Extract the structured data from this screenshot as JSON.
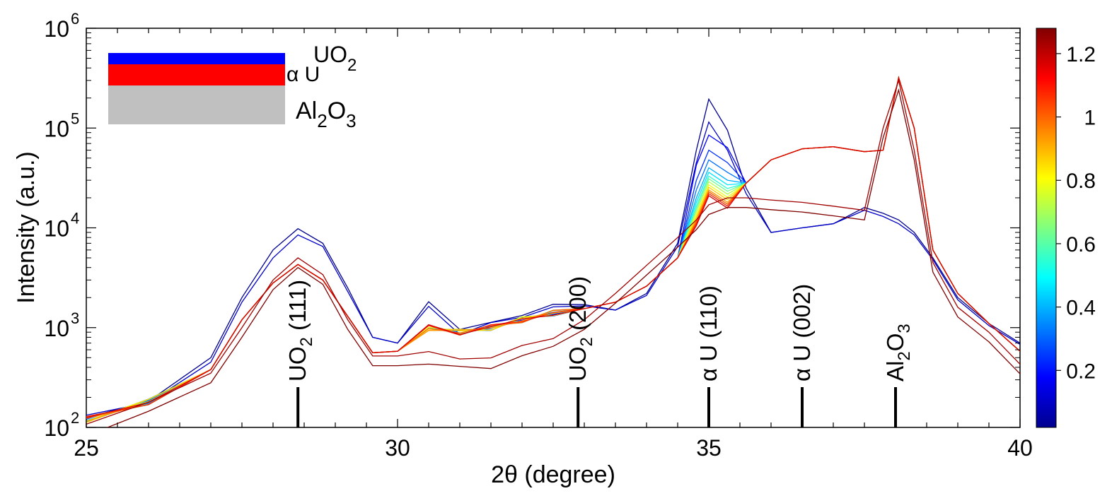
{
  "chart_data": {
    "type": "line",
    "xlabel": "2θ (degree)",
    "ylabel": "Intensity (a.u.)",
    "xlim": [
      25,
      40
    ],
    "ylim": [
      100,
      1000000
    ],
    "yscale": "log",
    "x_ticks": [
      "25",
      "30",
      "35",
      "40"
    ],
    "y_ticks": [
      {
        "base": "10",
        "exp": "2"
      },
      {
        "base": "10",
        "exp": "3"
      },
      {
        "base": "10",
        "exp": "4"
      },
      {
        "base": "10",
        "exp": "5"
      },
      {
        "base": "10",
        "exp": "6"
      }
    ],
    "grid": false,
    "colorbar": {
      "colormap": "jet",
      "range": [
        0.02,
        1.28
      ],
      "ticks": [
        "0.2",
        "0.4",
        "0.6",
        "0.8",
        "1",
        "1.2"
      ]
    },
    "peak_markers": [
      {
        "x": 28.4,
        "label": "UO",
        "sub1": "2",
        "rest": " (111)"
      },
      {
        "x": 32.9,
        "label": "UO",
        "sub1": "2",
        "rest": " (200)"
      },
      {
        "x": 35.0,
        "label": "α U (110)",
        "sub1": "",
        "rest": ""
      },
      {
        "x": 36.5,
        "label": "α U (002)",
        "sub1": "",
        "rest": ""
      },
      {
        "x": 38.0,
        "label": "Al",
        "sub1": "2",
        "rest": "O",
        "sub2": "3"
      }
    ],
    "series_templates": {
      "x": [
        25,
        26,
        27,
        27.5,
        28,
        28.4,
        28.8,
        29.2,
        29.6,
        30,
        30.5,
        31,
        31.5,
        32,
        32.5,
        33,
        33.5,
        34,
        34.5,
        34.8,
        35,
        35.3,
        35.6,
        36,
        36.5,
        37,
        37.5,
        37.8,
        38.05,
        38.3,
        38.6,
        39,
        39.5,
        40
      ],
      "initial": [
        125,
        190,
        500,
        2000,
        6000,
        9800,
        7000,
        2500,
        800,
        700,
        1900,
        950,
        1100,
        1400,
        1600,
        1700,
        1500,
        2200,
        7000,
        60000,
        195000,
        95000,
        25000,
        9000,
        10000,
        11000,
        16000,
        14000,
        12000,
        9000,
        5000,
        2000,
        1100,
        700
      ],
      "intermediate": [
        125,
        190,
        450,
        1800,
        5000,
        8500,
        6500,
        2300,
        800,
        700,
        1600,
        900,
        1050,
        1350,
        1550,
        1650,
        1500,
        2100,
        6500,
        45000,
        115000,
        60000,
        22000,
        9000,
        10000,
        11000,
        15000,
        13000,
        11000,
        8500,
        4800,
        1900,
        1050,
        680
      ],
      "uranium": [
        120,
        180,
        380,
        1200,
        2800,
        4300,
        3000,
        1300,
        560,
        580,
        1000,
        900,
        1000,
        1200,
        1400,
        1550,
        1800,
        2600,
        5000,
        12000,
        25000,
        22000,
        28000,
        48000,
        62000,
        65000,
        58000,
        60000,
        320000,
        100000,
        6000,
        2200,
        1100,
        580
      ],
      "final": [
        110,
        170,
        350,
        1000,
        3000,
        5000,
        3400,
        1200,
        520,
        520,
        560,
        480,
        520,
        620,
        830,
        1200,
        2200,
        4200,
        8000,
        12000,
        17000,
        20000,
        20000,
        19000,
        18000,
        16500,
        15000,
        100000,
        300000,
        60000,
        4500,
        1600,
        900,
        430
      ]
    },
    "series": [
      {
        "value": 0.02,
        "color": "#00008f",
        "template": "initial",
        "scale": 1.0
      },
      {
        "value": 0.08,
        "color": "#0000c8",
        "template": "intermediate",
        "scale": 1.0
      },
      {
        "value": 0.14,
        "color": "#0000ff",
        "template": "uranium",
        "scale": 1.0,
        "peak110": 85000
      },
      {
        "value": 0.22,
        "color": "#0030ff",
        "template": "uranium",
        "scale": 1.0,
        "peak110": 60000
      },
      {
        "value": 0.3,
        "color": "#0070ff",
        "template": "uranium",
        "scale": 1.0,
        "peak110": 48000
      },
      {
        "value": 0.38,
        "color": "#00b0ff",
        "template": "uranium",
        "scale": 1.0,
        "peak110": 40000
      },
      {
        "value": 0.46,
        "color": "#00e8ff",
        "template": "uranium",
        "scale": 1.0,
        "peak110": 36000
      },
      {
        "value": 0.54,
        "color": "#30ffd0",
        "template": "uranium",
        "scale": 1.0,
        "peak110": 33000
      },
      {
        "value": 0.62,
        "color": "#70ff90",
        "template": "uranium",
        "scale": 1.0,
        "peak110": 31000
      },
      {
        "value": 0.7,
        "color": "#b0ff50",
        "template": "uranium",
        "scale": 1.0,
        "peak110": 29000
      },
      {
        "value": 0.78,
        "color": "#f0ff10",
        "template": "uranium",
        "scale": 1.0,
        "peak110": 27000
      },
      {
        "value": 0.86,
        "color": "#ffd000",
        "template": "uranium",
        "scale": 1.0,
        "peak110": 25500
      },
      {
        "value": 0.94,
        "color": "#ff9800",
        "template": "uranium",
        "scale": 1.0,
        "peak110": 24000
      },
      {
        "value": 1.02,
        "color": "#ff6000",
        "template": "uranium",
        "scale": 1.0,
        "peak110": 23000
      },
      {
        "value": 1.1,
        "color": "#ff2000",
        "template": "uranium",
        "scale": 1.0,
        "peak110": 22000
      },
      {
        "value": 1.18,
        "color": "#d80000",
        "template": "uranium",
        "scale": 1.0,
        "peak110": 21000
      },
      {
        "value": 1.24,
        "color": "#a00000",
        "template": "final",
        "scale": 1.0
      },
      {
        "value": 1.28,
        "color": "#800000",
        "template": "final",
        "scale": 0.8
      }
    ]
  },
  "inset": {
    "layers": [
      {
        "label": "UO",
        "sub": "2",
        "color": "#0000ff"
      },
      {
        "label": "α U",
        "sub": "",
        "color": "#ff0000"
      },
      {
        "label": "Al",
        "sub": "2",
        "label2": "O",
        "sub2": "3",
        "color": "#c0c0c0"
      }
    ]
  }
}
